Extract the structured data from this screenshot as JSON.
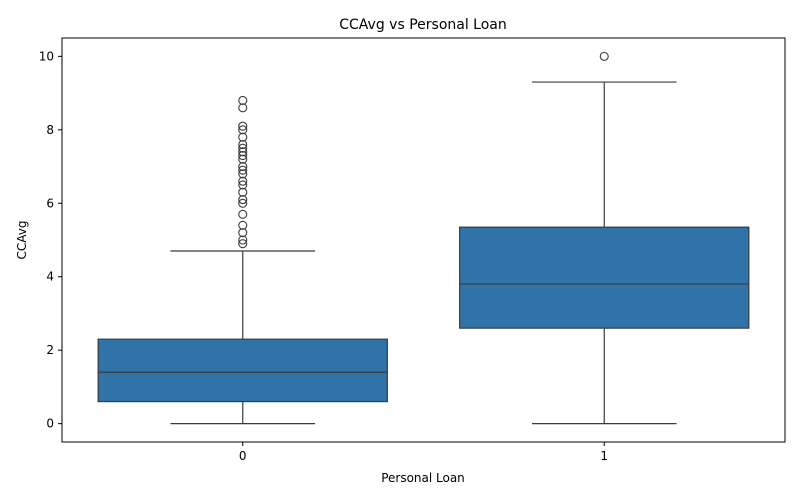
{
  "chart_data": {
    "type": "box",
    "title": "CCAvg vs Personal Loan",
    "xlabel": "Personal Loan",
    "ylabel": "CCAvg",
    "categories": [
      "0",
      "1"
    ],
    "ylim": [
      -0.5,
      10.5
    ],
    "yticks": [
      0,
      2,
      4,
      6,
      8,
      10
    ],
    "grid": false,
    "legend": "none",
    "box_color": "#2f73a8",
    "line_color": "#3b3b3b",
    "boxes": [
      {
        "category": "0",
        "whisker_low": 0.0,
        "q1": 0.6,
        "median": 1.4,
        "q3": 2.3,
        "whisker_high": 4.7,
        "outliers": [
          4.9,
          5.0,
          5.2,
          5.4,
          5.7,
          6.0,
          6.1,
          6.3,
          6.5,
          6.6,
          6.8,
          6.9,
          7.0,
          7.2,
          7.3,
          7.4,
          7.5,
          7.6,
          7.8,
          8.0,
          8.1,
          8.6,
          8.8
        ]
      },
      {
        "category": "1",
        "whisker_low": 0.0,
        "q1": 2.6,
        "median": 3.8,
        "q3": 5.35,
        "whisker_high": 9.3,
        "outliers": [
          10.0
        ]
      }
    ]
  }
}
